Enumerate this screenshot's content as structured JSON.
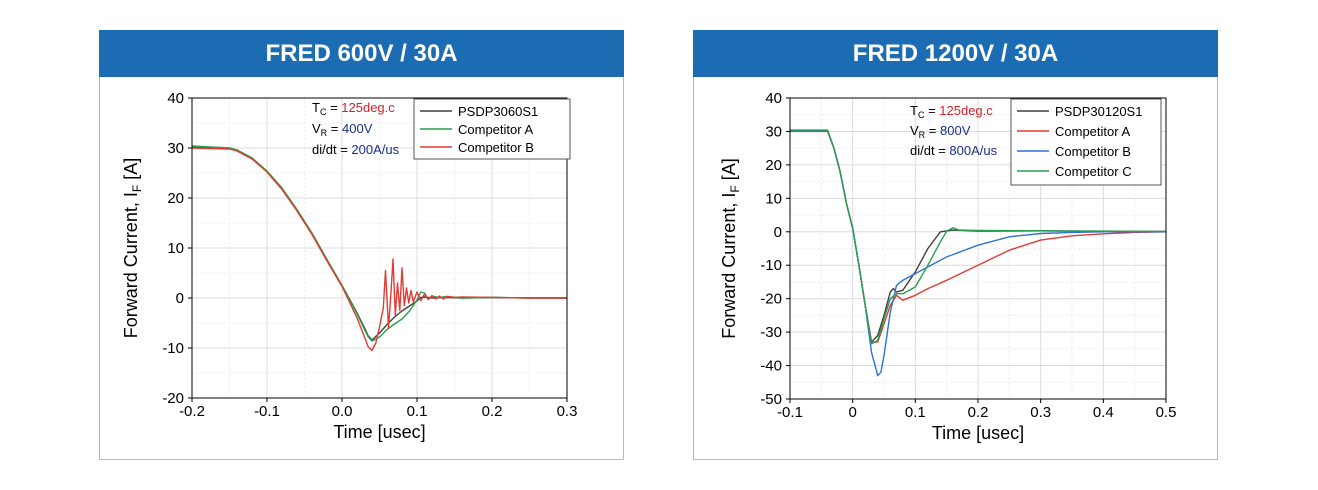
{
  "panels": [
    {
      "title": "FRED 600V / 30A"
    },
    {
      "title": "FRED 1200V / 30A"
    }
  ],
  "chart_data": [
    {
      "type": "line",
      "title": "FRED 600V / 30A",
      "xlabel": "Time [usec]",
      "ylabel": "Forward Current, I",
      "ylabel_sub": "F",
      "ylabel_suffix": " [A]",
      "xlim": [
        -0.2,
        0.3
      ],
      "ylim": [
        -20,
        40
      ],
      "xticks": [
        -0.2,
        -0.1,
        0.0,
        0.1,
        0.2,
        0.3
      ],
      "xtick_labels": [
        "-0.2",
        "-0.1",
        "0.0",
        "0.1",
        "0.2",
        "0.3"
      ],
      "yticks": [
        -20,
        -10,
        0,
        10,
        20,
        30,
        40
      ],
      "ytick_labels": [
        "-20",
        "-10",
        "0",
        "10",
        "20",
        "30",
        "40"
      ],
      "grid": true,
      "legend_position": "top-right",
      "annotations": [
        {
          "main": "T",
          "sub": "C",
          "sep": " = ",
          "value": "125deg.c",
          "value_color": "#d8202a"
        },
        {
          "main": "V",
          "sub": "R",
          "sep": " = ",
          "value": "400V",
          "value_color": "#1a2f8a"
        },
        {
          "main": "di/dt",
          "sub": "",
          "sep": " = ",
          "value": "200A/us",
          "value_color": "#1a2f8a"
        }
      ],
      "series": [
        {
          "name": "PSDP3060S1",
          "color": "#404040",
          "x": [
            -0.2,
            -0.15,
            -0.14,
            -0.12,
            -0.1,
            -0.08,
            -0.06,
            -0.04,
            -0.02,
            0.0,
            0.01,
            0.02,
            0.03,
            0.035,
            0.04,
            0.05,
            0.06,
            0.07,
            0.08,
            0.09,
            0.1,
            0.105,
            0.11,
            0.12,
            0.14,
            0.16,
            0.2,
            0.25,
            0.3
          ],
          "y": [
            30.2,
            30.0,
            29.6,
            28.0,
            25.3,
            21.9,
            17.6,
            12.9,
            7.6,
            2.5,
            -0.2,
            -3.0,
            -6.0,
            -7.6,
            -8.4,
            -7.0,
            -5.3,
            -3.8,
            -2.6,
            -1.6,
            -0.6,
            0.1,
            0.2,
            0.0,
            0.1,
            0.0,
            0.1,
            0.0,
            0.0
          ]
        },
        {
          "name": "Competitor A",
          "color": "#27a04d",
          "x": [
            -0.2,
            -0.15,
            -0.14,
            -0.12,
            -0.1,
            -0.08,
            -0.06,
            -0.04,
            -0.02,
            0.0,
            0.01,
            0.02,
            0.03,
            0.035,
            0.04,
            0.05,
            0.06,
            0.07,
            0.08,
            0.09,
            0.1,
            0.105,
            0.11,
            0.115,
            0.12,
            0.13,
            0.14,
            0.16,
            0.2,
            0.25,
            0.3
          ],
          "y": [
            30.4,
            30.0,
            29.6,
            28.0,
            25.4,
            22.0,
            17.7,
            13.0,
            7.7,
            2.5,
            -0.3,
            -3.2,
            -6.3,
            -7.8,
            -8.6,
            -7.8,
            -6.3,
            -5.2,
            -4.2,
            -2.6,
            -0.4,
            1.2,
            1.0,
            -0.3,
            0.4,
            0.1,
            0.3,
            0.0,
            0.1,
            0.0,
            0.0
          ]
        },
        {
          "name": "Competitor B",
          "color": "#e23b35",
          "x": [
            -0.2,
            -0.15,
            -0.14,
            -0.12,
            -0.1,
            -0.08,
            -0.06,
            -0.04,
            -0.02,
            0.0,
            0.01,
            0.02,
            0.03,
            0.035,
            0.04,
            0.045,
            0.05,
            0.055,
            0.058,
            0.062,
            0.065,
            0.068,
            0.071,
            0.074,
            0.077,
            0.08,
            0.083,
            0.086,
            0.089,
            0.092,
            0.095,
            0.1,
            0.105,
            0.11,
            0.115,
            0.12,
            0.125,
            0.13,
            0.135,
            0.14,
            0.15,
            0.16,
            0.2,
            0.25,
            0.3
          ],
          "y": [
            30.0,
            29.8,
            29.4,
            27.8,
            25.2,
            21.7,
            17.4,
            12.7,
            7.4,
            2.3,
            -0.8,
            -4.0,
            -7.8,
            -9.8,
            -10.5,
            -9.0,
            -5.8,
            -2.0,
            5.5,
            -6.0,
            0.5,
            7.8,
            -3.5,
            3.0,
            -2.5,
            6.0,
            -1.5,
            2.0,
            -1.0,
            1.5,
            -0.8,
            1.2,
            -0.5,
            0.8,
            -0.3,
            0.5,
            -0.2,
            0.4,
            -0.2,
            0.3,
            0.1,
            0.2,
            0.1,
            0.0,
            0.0
          ]
        }
      ]
    },
    {
      "type": "line",
      "title": "FRED 1200V / 30A",
      "xlabel": "Time [usec]",
      "ylabel": "Forward Current, I",
      "ylabel_sub": "F",
      "ylabel_suffix": " [A]",
      "xlim": [
        -0.1,
        0.5
      ],
      "ylim": [
        -50,
        40
      ],
      "xticks": [
        -0.1,
        0.0,
        0.1,
        0.2,
        0.3,
        0.4,
        0.5
      ],
      "xtick_labels": [
        "-0.1",
        "0",
        "0.1",
        "0.2",
        "0.3",
        "0.4",
        "0.5"
      ],
      "yticks": [
        -50,
        -40,
        -30,
        -20,
        -10,
        0,
        10,
        20,
        30,
        40
      ],
      "ytick_labels": [
        "-50",
        "-40",
        "-30",
        "-20",
        "-10",
        "0",
        "10",
        "20",
        "30",
        "40"
      ],
      "grid": true,
      "legend_position": "top-right",
      "annotations": [
        {
          "main": "T",
          "sub": "C",
          "sep": " = ",
          "value": "125deg.c",
          "value_color": "#d8202a"
        },
        {
          "main": "V",
          "sub": "R",
          "sep": " = ",
          "value": "800V",
          "value_color": "#1a2f8a"
        },
        {
          "main": "di/dt",
          "sub": "",
          "sep": " = ",
          "value": "800A/us",
          "value_color": "#1a2f8a"
        }
      ],
      "series": [
        {
          "name": "PSDP30120S1",
          "color": "#404040",
          "x": [
            -0.1,
            -0.04,
            -0.03,
            -0.02,
            -0.01,
            0.0,
            0.01,
            0.02,
            0.03,
            0.04,
            0.05,
            0.06,
            0.065,
            0.07,
            0.08,
            0.1,
            0.12,
            0.14,
            0.16,
            0.2,
            0.3,
            0.4,
            0.5
          ],
          "y": [
            30.2,
            30.2,
            25.0,
            18.0,
            8.5,
            1.0,
            -10.0,
            -22.0,
            -33.0,
            -31.0,
            -25.0,
            -18.0,
            -17.0,
            -18.0,
            -17.5,
            -12.0,
            -5.0,
            0.0,
            0.5,
            0.2,
            0.3,
            0.1,
            0.1
          ]
        },
        {
          "name": "Competitor A",
          "color": "#e23b35",
          "x": [
            -0.1,
            -0.04,
            -0.03,
            -0.02,
            -0.01,
            0.0,
            0.01,
            0.02,
            0.03,
            0.04,
            0.05,
            0.06,
            0.07,
            0.08,
            0.1,
            0.12,
            0.15,
            0.2,
            0.25,
            0.3,
            0.35,
            0.4,
            0.45,
            0.5
          ],
          "y": [
            30.0,
            30.0,
            25.0,
            18.0,
            8.5,
            1.0,
            -10.0,
            -22.0,
            -33.0,
            -33.0,
            -27.5,
            -22.0,
            -19.0,
            -20.5,
            -19.0,
            -17.0,
            -14.5,
            -10.0,
            -5.5,
            -2.5,
            -1.2,
            -0.6,
            -0.2,
            0.0
          ]
        },
        {
          "name": "Competitor B",
          "color": "#2f74d0",
          "x": [
            -0.1,
            -0.04,
            -0.03,
            -0.02,
            -0.01,
            0.0,
            0.01,
            0.02,
            0.03,
            0.04,
            0.045,
            0.05,
            0.06,
            0.07,
            0.08,
            0.1,
            0.12,
            0.15,
            0.2,
            0.25,
            0.3,
            0.35,
            0.4,
            0.45,
            0.5
          ],
          "y": [
            30.2,
            30.2,
            25.0,
            18.0,
            8.5,
            1.0,
            -10.0,
            -22.0,
            -36.0,
            -43.0,
            -42.0,
            -37.0,
            -24.0,
            -16.0,
            -14.5,
            -12.5,
            -10.5,
            -7.5,
            -4.0,
            -1.5,
            -0.5,
            -0.2,
            0.0,
            0.0,
            0.0
          ]
        },
        {
          "name": "Competitor C",
          "color": "#27a04d",
          "x": [
            -0.1,
            -0.04,
            -0.03,
            -0.02,
            -0.01,
            0.0,
            0.01,
            0.02,
            0.03,
            0.04,
            0.05,
            0.06,
            0.07,
            0.08,
            0.1,
            0.12,
            0.14,
            0.15,
            0.16,
            0.17,
            0.2,
            0.3,
            0.4,
            0.5
          ],
          "y": [
            30.4,
            30.4,
            25.0,
            18.0,
            8.5,
            1.0,
            -10.0,
            -22.0,
            -33.5,
            -32.5,
            -26.0,
            -20.0,
            -18.5,
            -18.5,
            -16.5,
            -10.0,
            -3.0,
            0.2,
            1.2,
            0.5,
            0.4,
            0.3,
            0.2,
            0.1
          ]
        }
      ]
    }
  ]
}
